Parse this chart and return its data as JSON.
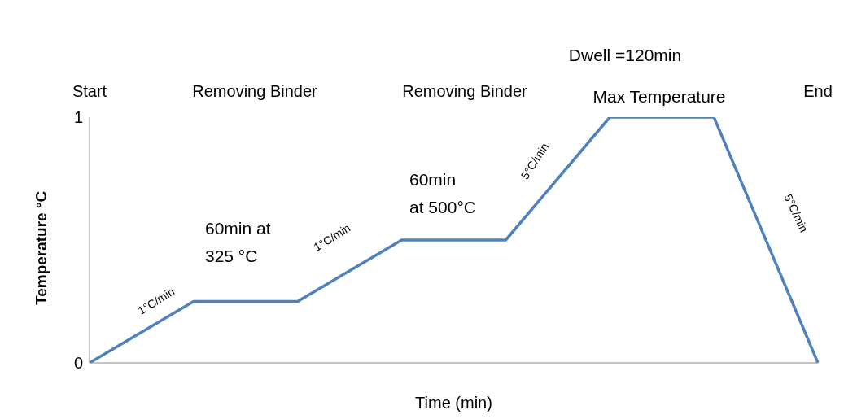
{
  "chart_data": {
    "type": "line",
    "xlabel": "Time (min)",
    "ylabel": "Temperature °C",
    "categories": [
      null,
      null,
      null,
      null,
      null,
      null,
      null,
      null
    ],
    "series": [
      {
        "color": "#4f81bd",
        "values": [
          0,
          0.25,
          0.25,
          0.5,
          0.5,
          1,
          1,
          0
        ]
      }
    ],
    "ylim": [
      0,
      1
    ],
    "yticks": [
      0,
      1
    ],
    "grid": false,
    "legend": false,
    "marker": "none",
    "line_style": "solid",
    "annotations": [
      "Start",
      "Removing Binder",
      "Removing Binder",
      "Max Temperature",
      "End",
      "Dwell =120min",
      "1°C/min",
      "60min at\n325 °C",
      "1°C/min",
      "60min\nat 500°C",
      "5°C/min",
      "5°C/min"
    ]
  }
}
